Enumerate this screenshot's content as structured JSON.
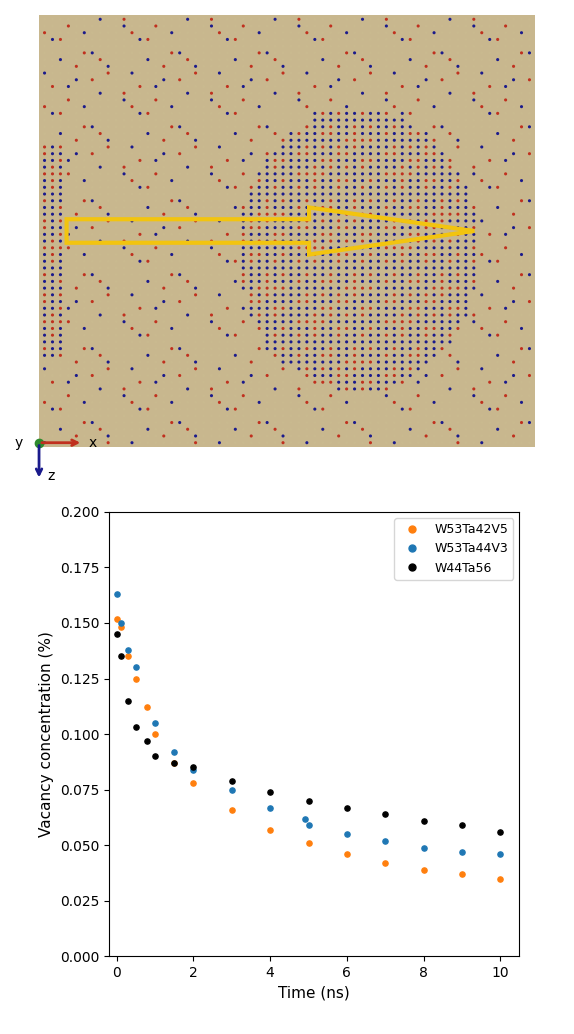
{
  "illustration": {
    "axis_labels": [
      "x",
      "y",
      "z"
    ]
  },
  "chart_data": {
    "type": "scatter",
    "x_label": "Time (ns)",
    "y_label": "Vacancy concentration (%)",
    "xlim": [
      -0.2,
      10.5
    ],
    "xticks": [
      0,
      2,
      4,
      6,
      8,
      10
    ],
    "ylim": [
      0,
      0.2
    ],
    "yticks": [
      {
        "value": 0.0,
        "label": "0.000"
      },
      {
        "value": 0.025,
        "label": "0.025"
      },
      {
        "value": 0.05,
        "label": "0.050"
      },
      {
        "value": 0.075,
        "label": "0.075"
      },
      {
        "value": 0.1,
        "label": "0.100"
      },
      {
        "value": 0.125,
        "label": "0.125"
      },
      {
        "value": 0.15,
        "label": "0.150"
      },
      {
        "value": 0.175,
        "label": "0.175"
      },
      {
        "value": 0.2,
        "label": "0.200"
      }
    ],
    "legend": "upper right",
    "grid": false,
    "series": [
      {
        "name": "W53Ta42V5",
        "color": "#ff7f0e",
        "marker": "o",
        "x": [
          0,
          0.1,
          0.3,
          0.5,
          0.8,
          1,
          1.5,
          2,
          3,
          4,
          5,
          6,
          7,
          8,
          9,
          10
        ],
        "values": [
          0.152,
          0.148,
          0.135,
          0.125,
          0.112,
          0.1,
          0.087,
          0.078,
          0.066,
          0.057,
          0.051,
          0.046,
          0.042,
          0.039,
          0.037,
          0.035
        ]
      },
      {
        "name": "W53Ta44V3",
        "color": "#1f77b4",
        "marker": "o",
        "x": [
          0,
          0.1,
          0.3,
          0.5,
          1,
          1.5,
          2,
          3,
          4,
          4.9,
          5,
          6,
          7,
          8,
          9,
          10
        ],
        "values": [
          0.163,
          0.15,
          0.138,
          0.13,
          0.105,
          0.092,
          0.084,
          0.075,
          0.067,
          0.062,
          0.059,
          0.055,
          0.052,
          0.049,
          0.047,
          0.046
        ]
      },
      {
        "name": "W44Ta56",
        "color": "#000000",
        "marker": "o",
        "x": [
          0,
          0.1,
          0.3,
          0.5,
          0.8,
          1,
          1.5,
          2,
          3,
          4,
          5,
          6,
          7,
          8,
          9,
          10
        ],
        "values": [
          0.145,
          0.135,
          0.115,
          0.103,
          0.097,
          0.09,
          0.087,
          0.085,
          0.079,
          0.074,
          0.07,
          0.067,
          0.064,
          0.061,
          0.059,
          0.056
        ]
      }
    ]
  }
}
